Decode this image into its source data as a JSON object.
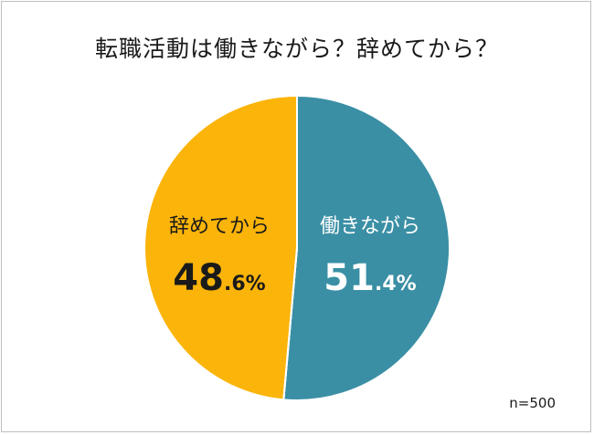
{
  "chart_data": {
    "type": "pie",
    "title": "転職活動は働きながら？辞めてから？",
    "slices": [
      {
        "label": "働きながら",
        "value": 51.4,
        "value_int": "51",
        "value_dec": ".4%",
        "color": "#3a8fa5",
        "label_color": "#ffffff"
      },
      {
        "label": "辞めてから",
        "value": 48.6,
        "value_int": "48",
        "value_dec": ".6%",
        "color": "#fbb40a",
        "label_color": "#1a1a1a"
      }
    ],
    "start": "12 o'clock",
    "direction": "clockwise",
    "note": "n=500"
  }
}
